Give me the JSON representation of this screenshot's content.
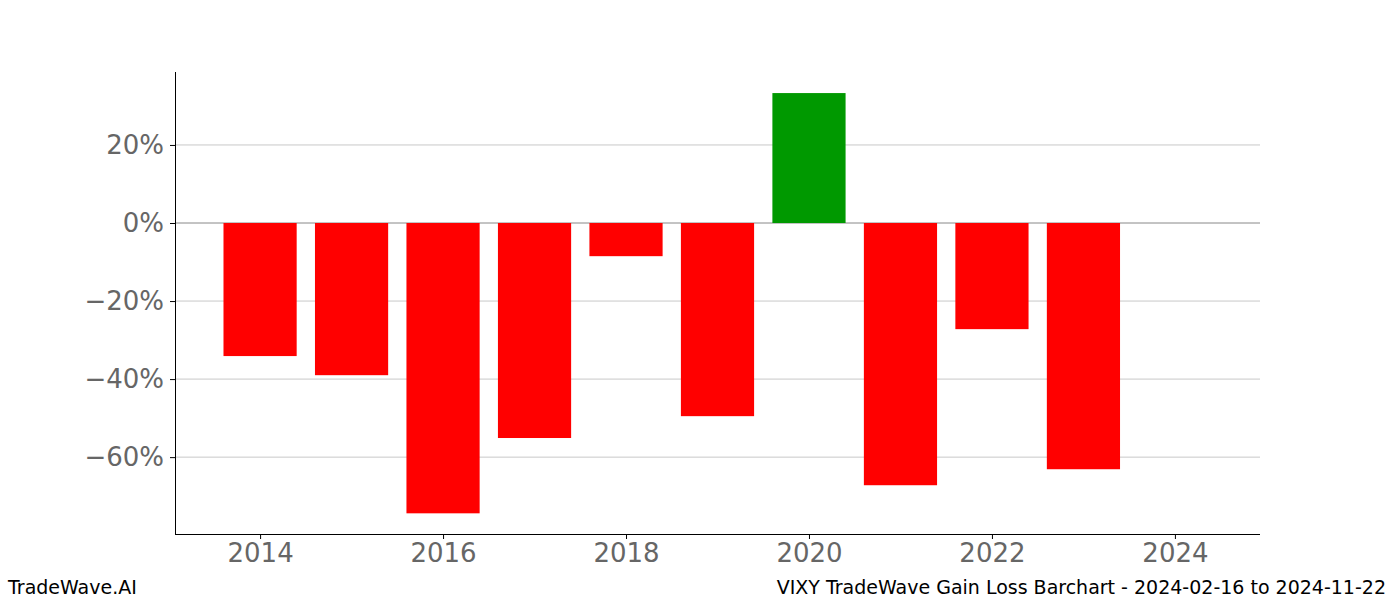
{
  "chart_data": {
    "type": "bar",
    "title": "VIXY TradeWave Gain Loss Barchart - 2024-02-16 to 2024-11-22",
    "source": "TradeWave.AI",
    "x": [
      2014,
      2015,
      2016,
      2017,
      2018,
      2019,
      2020,
      2021,
      2022,
      2023
    ],
    "values": [
      -34.1,
      -39.0,
      -74.4,
      -55.1,
      -8.5,
      -49.5,
      33.3,
      -67.2,
      -27.2,
      -63.1
    ],
    "colors": [
      "#ff0000",
      "#ff0000",
      "#ff0000",
      "#ff0000",
      "#ff0000",
      "#ff0000",
      "#009900",
      "#ff0000",
      "#ff0000",
      "#ff0000"
    ],
    "xlim": [
      2013.07,
      2024.93
    ],
    "xticks": [
      2014,
      2016,
      2018,
      2020,
      2022,
      2024
    ],
    "ylim": [
      -79.7,
      38.7
    ],
    "yticks": [
      {
        "value": -60,
        "label": "−60%"
      },
      {
        "value": -40,
        "label": "−40%"
      },
      {
        "value": -20,
        "label": "−20%"
      },
      {
        "value": 0,
        "label": "0%"
      },
      {
        "value": 20,
        "label": "20%"
      }
    ],
    "grid": true
  }
}
